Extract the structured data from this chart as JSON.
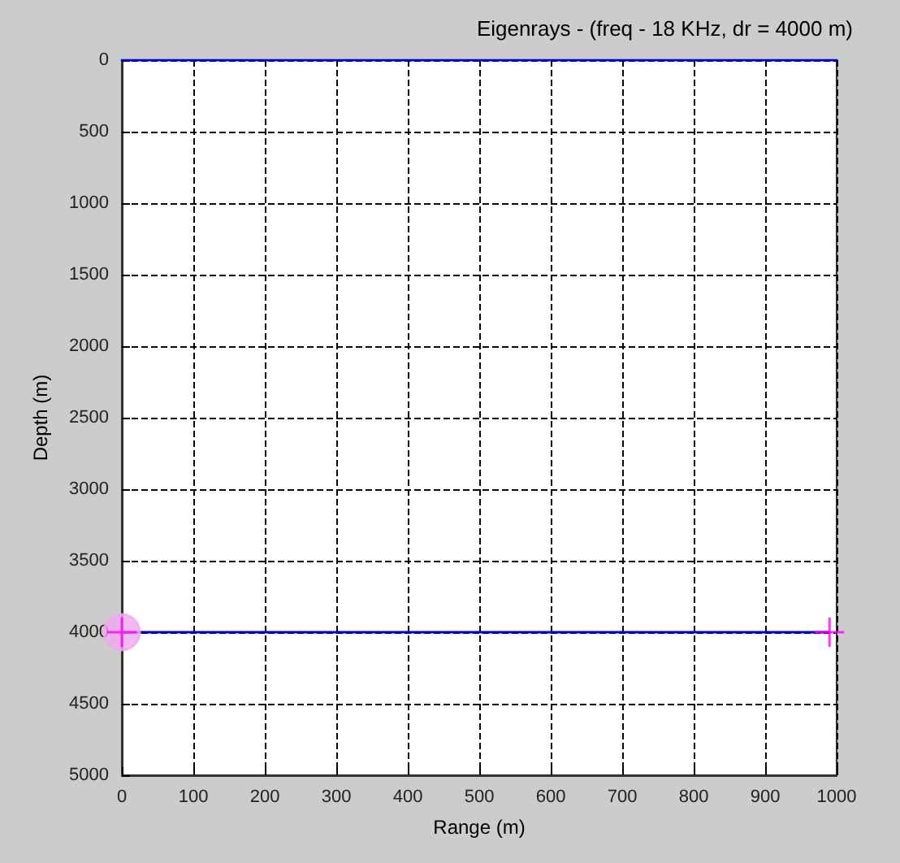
{
  "chart_data": {
    "type": "line",
    "title": "Eigenrays - (freq - 18 KHz, dr = 4000 m)",
    "xlabel": "Range (m)",
    "ylabel": "Depth (m)",
    "xlim": [
      0,
      1000
    ],
    "xticks": [
      0,
      100,
      200,
      300,
      400,
      500,
      600,
      700,
      800,
      900,
      1000
    ],
    "ylim": [
      5000,
      0
    ],
    "yticks": [
      0,
      500,
      1000,
      1500,
      2000,
      2500,
      3000,
      3500,
      4000,
      4500,
      5000
    ],
    "grid": true,
    "line_style": "dashed",
    "series": [
      {
        "color": "#0000cc",
        "x": [
          0,
          1000
        ],
        "values": [
          0,
          0
        ],
        "marker": "none",
        "line_style": "solid"
      },
      {
        "color": "#0000cc",
        "x": [
          0,
          990
        ],
        "values": [
          4000,
          4000
        ],
        "marker": "none",
        "line_style": "solid"
      },
      {
        "type": "scatter",
        "color": "#f0a8f0",
        "x": [
          0
        ],
        "values": [
          4000
        ],
        "marker": "circle"
      },
      {
        "type": "scatter",
        "color": "#ff00ff",
        "x": [
          0
        ],
        "values": [
          4000
        ],
        "marker": "cross"
      },
      {
        "type": "scatter",
        "color": "#ff00ff",
        "x": [
          990
        ],
        "values": [
          4000
        ],
        "marker": "cross"
      }
    ]
  }
}
